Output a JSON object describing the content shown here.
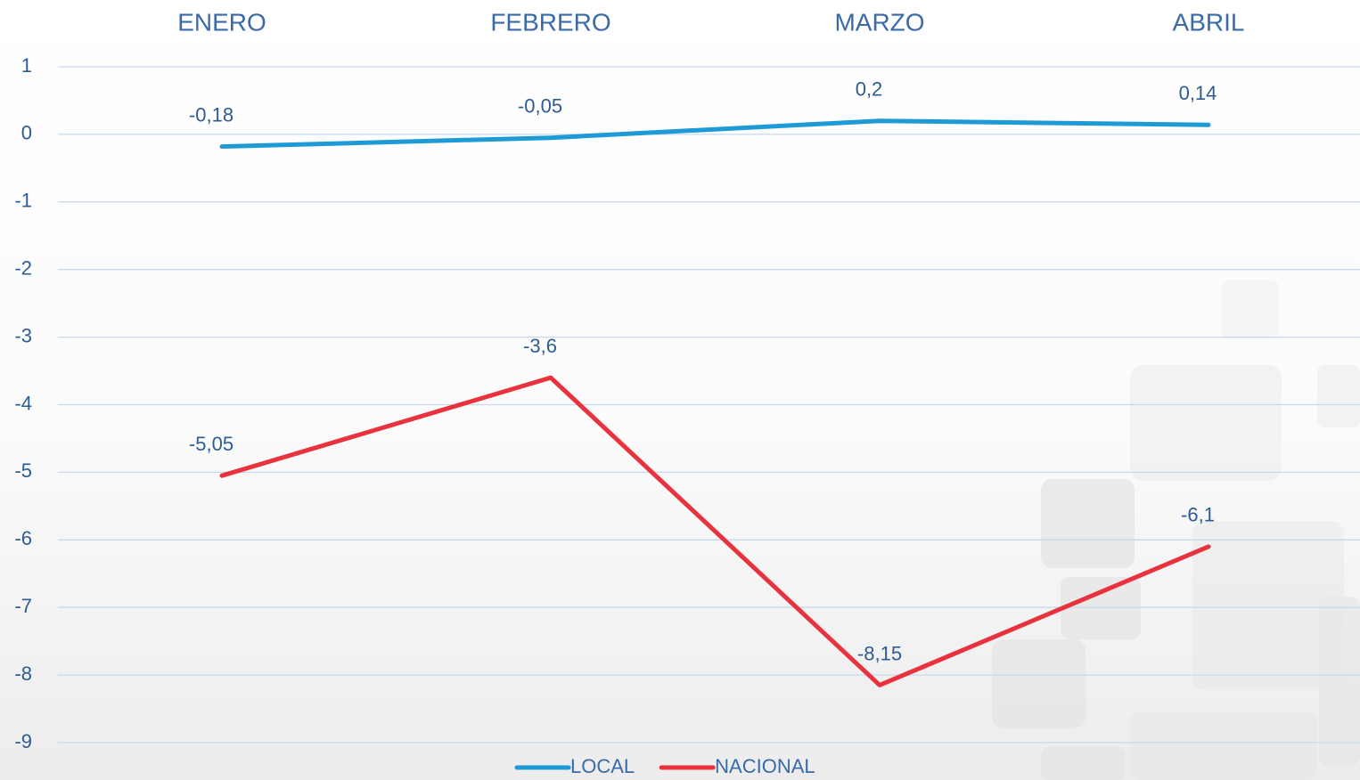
{
  "chart_data": {
    "type": "line",
    "categories": [
      "ENERO",
      "FEBRERO",
      "MARZO",
      "ABRIL"
    ],
    "series": [
      {
        "name": "LOCAL",
        "color": "#1e9ad6",
        "values": [
          -0.18,
          -0.05,
          0.2,
          0.14
        ],
        "value_labels": [
          "-0,18",
          "-0,05",
          "0,2",
          "0,14"
        ]
      },
      {
        "name": "NACIONAL",
        "color": "#e8323e",
        "values": [
          -5.05,
          -3.6,
          -8.15,
          -6.1
        ],
        "value_labels": [
          "-5,05",
          "-3,6",
          "-8,15",
          "-6,1"
        ]
      }
    ],
    "ylim": [
      -9.5,
      1
    ],
    "yticks": [
      1,
      0,
      -1,
      -2,
      -3,
      -4,
      -5,
      -6,
      -7,
      -8,
      -9
    ],
    "grid": true,
    "legend": "bottom"
  }
}
